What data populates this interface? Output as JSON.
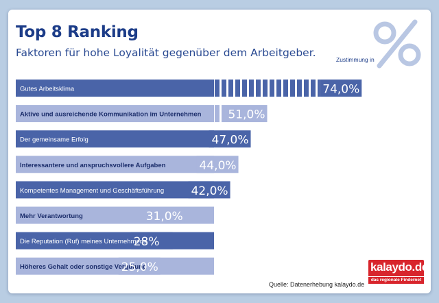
{
  "header": {
    "title": "Top 8 Ranking",
    "subtitle": "Faktoren für hohe Loyalität gegenüber dem Arbeitgeber.",
    "unit_note": "Zustimmung in",
    "percent_icon": "percent-sign-icon"
  },
  "chart_data": {
    "type": "bar",
    "orientation": "horizontal",
    "title": "Top 8 Ranking",
    "subtitle": "Faktoren für hohe Loyalität gegenüber dem Arbeitgeber.",
    "xlabel": "Zustimmung in %",
    "xlim": [
      0,
      100
    ],
    "categories": [
      "Gutes Arbeitsklima",
      "Aktive und ausreichende Kommunikation im Unternehmen",
      "Der gemeinsame Erfolg",
      "Interessantere und anspruchsvollere Aufgaben",
      "Kompetentes Management und Geschäftsführung",
      "Mehr Verantwortung",
      "Die Reputation (Ruf) meines Unternehmens",
      "Höheres Gehalt oder sonstige Vergütung"
    ],
    "values": [
      74.0,
      51.0,
      47.0,
      44.0,
      42.0,
      31.0,
      28.0,
      25.0
    ],
    "value_labels": [
      "74,0%",
      "51,0%",
      "47,0%",
      "44,0%",
      "42,0%",
      "31,0%",
      "28%",
      "25,0%"
    ],
    "colors": {
      "dark": "#4a64a8",
      "light": "#a9b5dc",
      "label_text": "#1c2e6b"
    }
  },
  "footer": {
    "source": "Quelle: Datenerhebung kalaydo.de",
    "logo_text": "kalaydo.de",
    "logo_tagline": "das regionale Findernet",
    "logo_color": "#d8252c"
  }
}
